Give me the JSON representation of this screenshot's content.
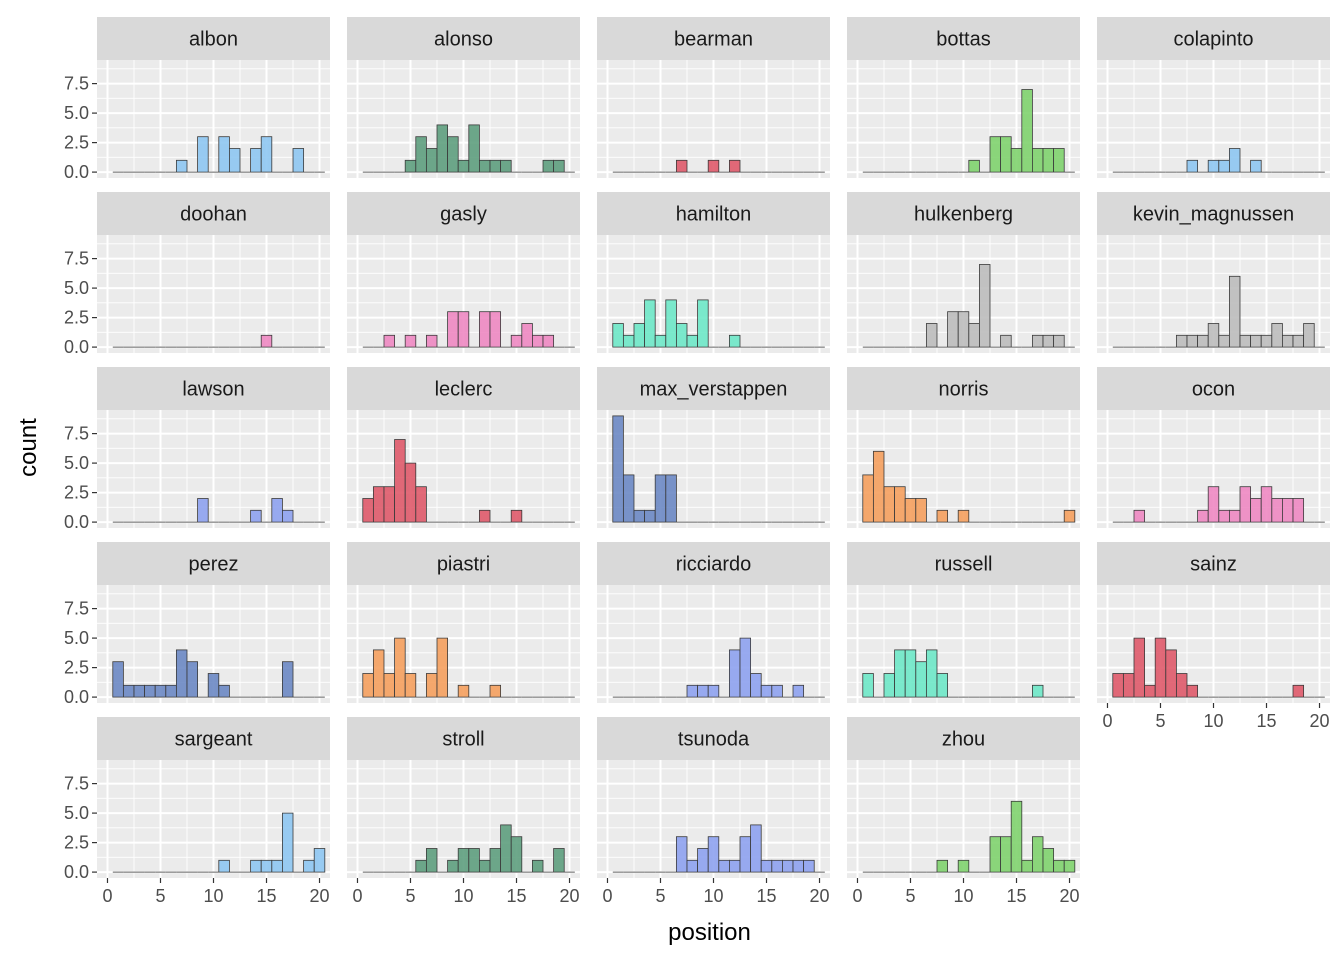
{
  "chart_data": {
    "type": "bar",
    "subtype": "faceted-histogram",
    "xlabel": "position",
    "ylabel": "count",
    "xlim": [
      0,
      20
    ],
    "ylim": [
      0,
      9
    ],
    "x_ticks": [
      "0",
      "5",
      "10",
      "15",
      "20"
    ],
    "y_ticks": [
      "0.0",
      "2.5",
      "5.0",
      "7.5"
    ],
    "bin_centers": [
      1,
      2,
      3,
      4,
      5,
      6,
      7,
      8,
      9,
      10,
      11,
      12,
      13,
      14,
      15,
      16,
      17,
      18,
      19,
      20
    ],
    "grid": true,
    "legend": "none",
    "panels": [
      {
        "name": "albon",
        "color": "#8ec6f2",
        "values": [
          0,
          0,
          0,
          0,
          0,
          0,
          1,
          0,
          3,
          0,
          3,
          2,
          0,
          2,
          3,
          0,
          0,
          2,
          0,
          0
        ]
      },
      {
        "name": "alonso",
        "color": "#5e9e7e",
        "values": [
          0,
          0,
          0,
          0,
          1,
          3,
          2,
          4,
          3,
          1,
          4,
          1,
          1,
          1,
          0,
          0,
          0,
          1,
          1,
          0
        ]
      },
      {
        "name": "bearman",
        "color": "#df5a6a",
        "values": [
          0,
          0,
          0,
          0,
          0,
          0,
          1,
          0,
          0,
          1,
          0,
          1,
          0,
          0,
          0,
          0,
          0,
          0,
          0,
          0
        ]
      },
      {
        "name": "bottas",
        "color": "#7fd36e",
        "values": [
          0,
          0,
          0,
          0,
          0,
          0,
          0,
          0,
          0,
          0,
          1,
          0,
          3,
          3,
          2,
          7,
          2,
          2,
          2,
          0
        ]
      },
      {
        "name": "colapinto",
        "color": "#8ec6f2",
        "values": [
          0,
          0,
          0,
          0,
          0,
          0,
          0,
          1,
          0,
          1,
          1,
          2,
          0,
          1,
          0,
          0,
          0,
          0,
          0,
          0
        ]
      },
      {
        "name": "doohan",
        "color": "#ee88c2",
        "values": [
          0,
          0,
          0,
          0,
          0,
          0,
          0,
          0,
          0,
          0,
          0,
          0,
          0,
          0,
          1,
          0,
          0,
          0,
          0,
          0
        ]
      },
      {
        "name": "gasly",
        "color": "#ee88c2",
        "values": [
          0,
          0,
          1,
          0,
          1,
          0,
          1,
          0,
          3,
          3,
          0,
          3,
          3,
          0,
          1,
          2,
          1,
          1,
          0,
          0
        ]
      },
      {
        "name": "hamilton",
        "color": "#6ee8c8",
        "values": [
          2,
          1,
          2,
          4,
          1,
          4,
          2,
          1,
          4,
          0,
          0,
          1,
          0,
          0,
          0,
          0,
          0,
          0,
          0,
          0
        ]
      },
      {
        "name": "hulkenberg",
        "color": "#bdbdbd",
        "values": [
          0,
          0,
          0,
          0,
          0,
          0,
          2,
          0,
          3,
          3,
          2,
          7,
          0,
          1,
          0,
          0,
          1,
          1,
          1,
          0
        ]
      },
      {
        "name": "kevin_magnussen",
        "color": "#bdbdbd",
        "values": [
          0,
          0,
          0,
          0,
          0,
          0,
          1,
          1,
          1,
          2,
          1,
          6,
          1,
          1,
          1,
          2,
          1,
          1,
          2,
          0
        ]
      },
      {
        "name": "lawson",
        "color": "#8ea2f0",
        "values": [
          0,
          0,
          0,
          0,
          0,
          0,
          0,
          0,
          2,
          0,
          0,
          0,
          0,
          1,
          0,
          2,
          1,
          0,
          0,
          0
        ]
      },
      {
        "name": "leclerc",
        "color": "#df5a6a",
        "values": [
          2,
          3,
          3,
          7,
          5,
          3,
          0,
          0,
          0,
          0,
          0,
          1,
          0,
          0,
          1,
          0,
          0,
          0,
          0,
          0
        ]
      },
      {
        "name": "max_verstappen",
        "color": "#6c88c4",
        "values": [
          9,
          4,
          1,
          1,
          4,
          4,
          0,
          0,
          0,
          0,
          0,
          0,
          0,
          0,
          0,
          0,
          0,
          0,
          0,
          0
        ]
      },
      {
        "name": "norris",
        "color": "#f5a05e",
        "values": [
          4,
          6,
          3,
          3,
          2,
          2,
          0,
          1,
          0,
          1,
          0,
          0,
          0,
          0,
          0,
          0,
          0,
          0,
          0,
          1
        ]
      },
      {
        "name": "ocon",
        "color": "#ee88c2",
        "values": [
          0,
          0,
          1,
          0,
          0,
          0,
          0,
          0,
          1,
          3,
          1,
          1,
          3,
          2,
          3,
          2,
          2,
          2,
          0,
          0
        ]
      },
      {
        "name": "perez",
        "color": "#6c88c4",
        "values": [
          3,
          1,
          1,
          1,
          1,
          1,
          4,
          3,
          0,
          2,
          1,
          0,
          0,
          0,
          0,
          0,
          3,
          0,
          0,
          0
        ]
      },
      {
        "name": "piastri",
        "color": "#f5a05e",
        "values": [
          2,
          4,
          2,
          5,
          2,
          0,
          2,
          5,
          0,
          1,
          0,
          0,
          1,
          0,
          0,
          0,
          0,
          0,
          0,
          0
        ]
      },
      {
        "name": "ricciardo",
        "color": "#8ea2f0",
        "values": [
          0,
          0,
          0,
          0,
          0,
          0,
          0,
          1,
          1,
          1,
          0,
          4,
          5,
          2,
          1,
          1,
          0,
          1,
          0,
          0
        ]
      },
      {
        "name": "russell",
        "color": "#6ee8c8",
        "values": [
          2,
          0,
          2,
          4,
          4,
          3,
          4,
          2,
          0,
          0,
          0,
          0,
          0,
          0,
          0,
          0,
          1,
          0,
          0,
          0
        ]
      },
      {
        "name": "sainz",
        "color": "#df5a6a",
        "values": [
          2,
          2,
          5,
          1,
          5,
          4,
          2,
          1,
          0,
          0,
          0,
          0,
          0,
          0,
          0,
          0,
          0,
          1,
          0,
          0
        ]
      },
      {
        "name": "sargeant",
        "color": "#8ec6f2",
        "values": [
          0,
          0,
          0,
          0,
          0,
          0,
          0,
          0,
          0,
          0,
          1,
          0,
          0,
          1,
          1,
          1,
          5,
          0,
          1,
          2
        ]
      },
      {
        "name": "stroll",
        "color": "#5e9e7e",
        "values": [
          0,
          0,
          0,
          0,
          0,
          1,
          2,
          0,
          1,
          2,
          2,
          1,
          2,
          4,
          3,
          0,
          1,
          0,
          2,
          0
        ]
      },
      {
        "name": "tsunoda",
        "color": "#8ea2f0",
        "values": [
          0,
          0,
          0,
          0,
          0,
          0,
          3,
          1,
          2,
          3,
          1,
          1,
          3,
          4,
          1,
          1,
          1,
          1,
          1,
          0
        ]
      },
      {
        "name": "zhou",
        "color": "#7fd36e",
        "values": [
          0,
          0,
          0,
          0,
          0,
          0,
          0,
          1,
          0,
          1,
          0,
          0,
          3,
          3,
          6,
          1,
          3,
          2,
          1,
          1
        ]
      }
    ]
  }
}
